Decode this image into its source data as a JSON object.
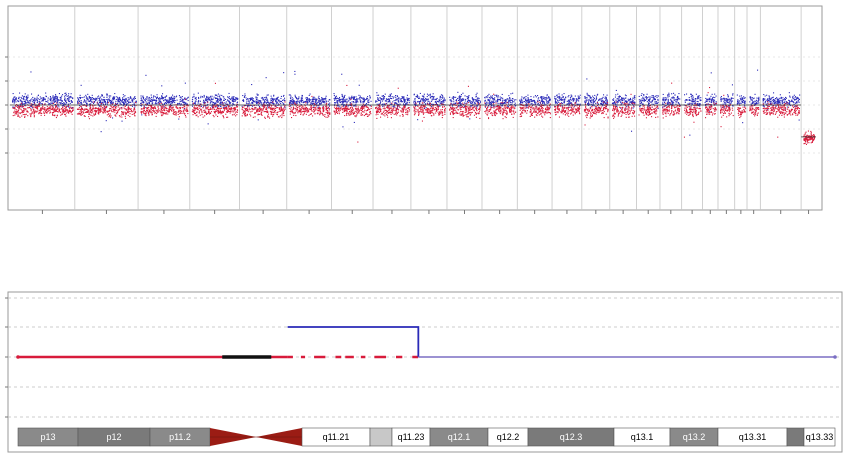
{
  "chart_data": [
    {
      "type": "scatter",
      "panel": "genome-wide",
      "grid": true,
      "y_gridlines": 5,
      "chromosome_count": 24,
      "series": [
        {
          "color": "#2a2ab8",
          "level": 0.08,
          "spread": 0.16
        },
        {
          "color": "#d81b3b",
          "level": -0.08,
          "spread": 0.16
        }
      ],
      "final_segment_level": -0.55
    },
    {
      "type": "line",
      "panel": "chromosome-detail",
      "grid": true,
      "x": [
        0,
        0.28,
        0.33,
        0.49,
        1.0
      ],
      "series": [
        {
          "color": "#d81b3b",
          "from": 0.0,
          "to": 0.49,
          "value": 0,
          "gapped_from": 0.33
        },
        {
          "color": "#111111",
          "from": 0.25,
          "to": 0.31,
          "value": 0
        },
        {
          "color": "#2a2ab8",
          "from": 0.33,
          "to": 0.49,
          "value": 1
        },
        {
          "color": "#7b6fc4",
          "from": 0.49,
          "to": 1.0,
          "value": 0
        }
      ]
    }
  ],
  "ideogram": {
    "bands": [
      {
        "label": "p13",
        "fill": "#8a8a8a",
        "text": "#ffffff"
      },
      {
        "label": "p12",
        "fill": "#7a7a7a",
        "text": "#ffffff"
      },
      {
        "label": "p11.2",
        "fill": "#8a8a8a",
        "text": "#ffffff"
      },
      {
        "label": "",
        "fill": "centromere",
        "text": "#000000"
      },
      {
        "label": "q11.21",
        "fill": "#ffffff",
        "text": "#000000"
      },
      {
        "label": "",
        "fill": "#c8c8c8",
        "text": "#000000"
      },
      {
        "label": "q11.23",
        "fill": "#ffffff",
        "text": "#000000"
      },
      {
        "label": "q12.1",
        "fill": "#8a8a8a",
        "text": "#ffffff"
      },
      {
        "label": "q12.2",
        "fill": "#ffffff",
        "text": "#000000"
      },
      {
        "label": "q12.3",
        "fill": "#7a7a7a",
        "text": "#ffffff"
      },
      {
        "label": "q13.1",
        "fill": "#ffffff",
        "text": "#000000"
      },
      {
        "label": "q13.2",
        "fill": "#8a8a8a",
        "text": "#ffffff"
      },
      {
        "label": "q13.31",
        "fill": "#ffffff",
        "text": "#000000"
      },
      {
        "label": "",
        "fill": "#7a7a7a",
        "text": "#ffffff"
      },
      {
        "label": "q13.33",
        "fill": "#ffffff",
        "text": "#000000"
      }
    ]
  }
}
